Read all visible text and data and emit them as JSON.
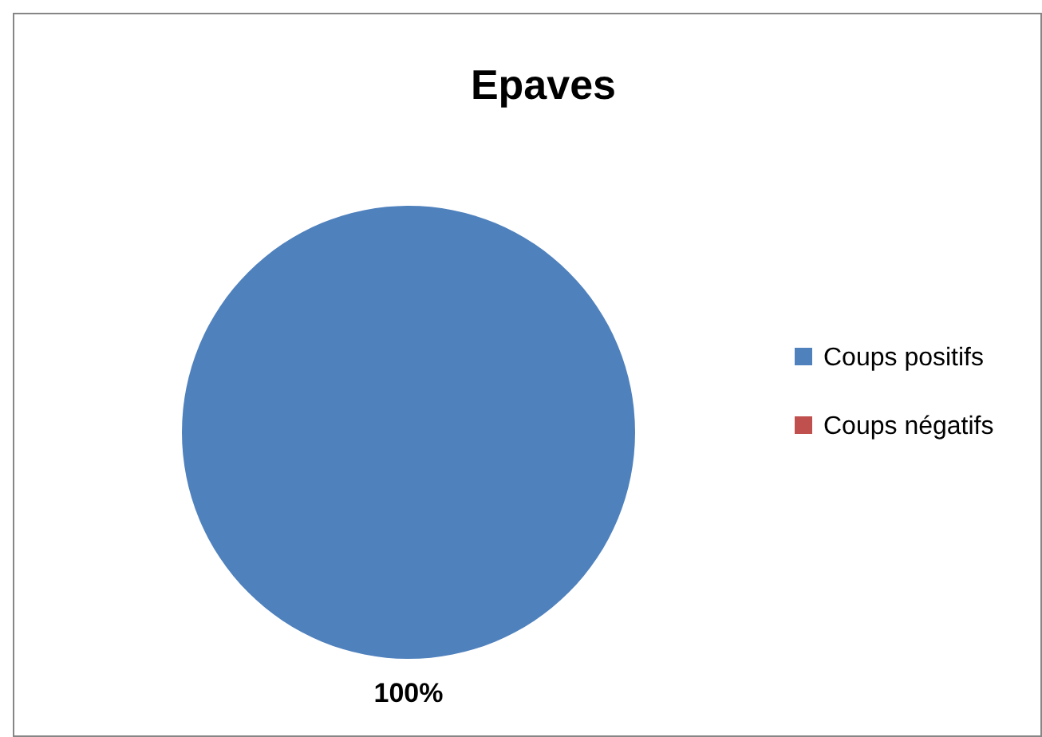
{
  "chart_data": {
    "type": "pie",
    "title": "Epaves",
    "categories": [
      "Coups positifs",
      "Coups négatifs"
    ],
    "values": [
      100,
      0
    ],
    "colors": [
      "#4f81bd",
      "#c0504d"
    ],
    "value_labels": [
      "100%",
      null
    ],
    "legend": "right"
  }
}
